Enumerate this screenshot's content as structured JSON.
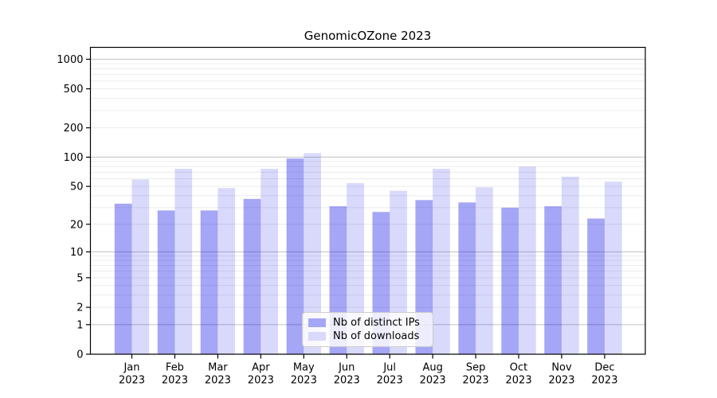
{
  "figure": {
    "title": "GenomicOZone 2023"
  },
  "legend": {
    "items": [
      {
        "key": "ips",
        "label": "Nb of distinct IPs",
        "color": "#0000e6",
        "fill_opacity": 0.35,
        "solid_color": "#a6a6f6"
      },
      {
        "key": "downloads",
        "label": "Nb of downloads",
        "color": "#0000e6",
        "fill_opacity": 0.15,
        "solid_color": "#d9d9fb"
      }
    ]
  },
  "chart_data": {
    "type": "bar",
    "title": "GenomicOZone 2023",
    "categories": [
      "Jan",
      "Feb",
      "Mar",
      "Apr",
      "May",
      "Jun",
      "Jul",
      "Aug",
      "Sep",
      "Oct",
      "Nov",
      "Dec"
    ],
    "category_year": "2023",
    "series": [
      {
        "key": "ips",
        "name": "Nb of distinct IPs",
        "color": "#0000e6",
        "fill_opacity": 0.35,
        "solid_color": "#a6a6f6",
        "values": [
          33,
          28,
          28,
          37,
          97,
          31,
          27,
          36,
          34,
          30,
          31,
          23
        ]
      },
      {
        "key": "downloads",
        "name": "Nb of downloads",
        "color": "#0000e6",
        "fill_opacity": 0.15,
        "solid_color": "#d9d9fb",
        "values": [
          59,
          76,
          48,
          76,
          110,
          54,
          45,
          76,
          49,
          80,
          63,
          56
        ]
      }
    ],
    "y_axis": {
      "scale": "log10(1+x)",
      "tick_labels": [
        0,
        1,
        2,
        5,
        10,
        20,
        50,
        100,
        200,
        500,
        1000
      ],
      "min": 0,
      "max": 1330
    },
    "x_axis": {
      "tick_line2": "2023"
    },
    "grid": {
      "on": true,
      "major_values": [
        1,
        10,
        100,
        1000
      ],
      "minor_values": [
        2,
        3,
        4,
        5,
        6,
        7,
        8,
        9,
        20,
        30,
        40,
        50,
        60,
        70,
        80,
        90,
        200,
        300,
        400,
        500,
        600,
        700,
        800,
        900
      ],
      "major_color": "#c9c9c9",
      "minor_color": "#ececec"
    },
    "legend_position": "lower center",
    "spine_color": "#000000"
  }
}
